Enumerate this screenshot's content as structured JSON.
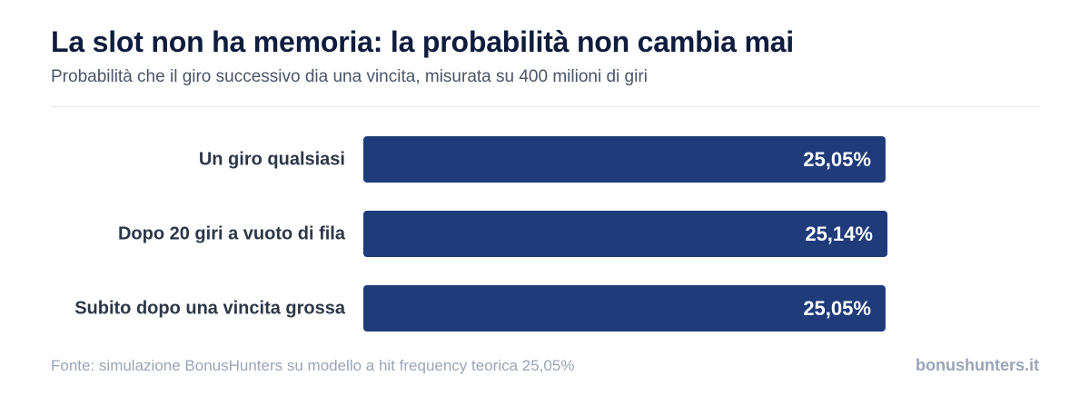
{
  "title": "La slot non ha memoria: la probabilità non cambia mai",
  "subtitle": "Probabilità che il giro successivo dia una vincita, misurata su 400 milioni di giri",
  "footer": {
    "source": "Fonte: simulazione BonusHunters su modello a hit frequency teorica 25,05%",
    "brand": "bonushunters.it"
  },
  "colors": {
    "bar": "#1f3b7a",
    "bar_label": "#ffffff",
    "category_label": "#2d3748"
  },
  "chart_data": {
    "type": "bar",
    "orientation": "horizontal",
    "categories": [
      "Un giro qualsiasi",
      "Dopo 20 giri a vuoto di fila",
      "Subito dopo una vincita grossa"
    ],
    "values": [
      25.05,
      25.14,
      25.05
    ],
    "value_labels": [
      "25,05%",
      "25,14%",
      "25,05%"
    ],
    "title": "La slot non ha memoria: la probabilità non cambia mai",
    "xlabel": "",
    "ylabel": "",
    "grid": false
  }
}
